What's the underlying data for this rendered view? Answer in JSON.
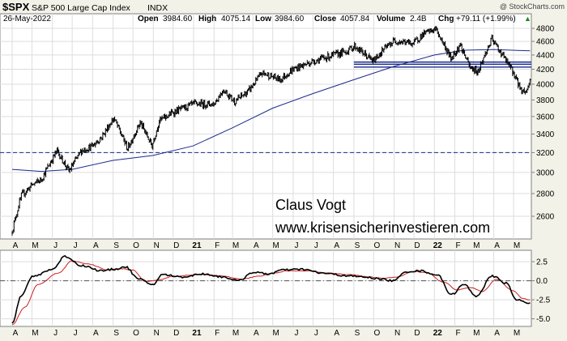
{
  "header": {
    "symbol": "$SPX",
    "name": "S&P 500 Large Cap Index",
    "exchange": "INDX",
    "date": "26-May-2022",
    "watermark": "@ StockCharts.com",
    "open_label": "Open",
    "open_value": "3984.60",
    "high_label": "High",
    "high_value": "4075.14",
    "low_label": "Low",
    "low_value": "3984.60",
    "close_label": "Close",
    "close_value": "4057.84",
    "volume_label": "Volume",
    "volume_value": "2.4B",
    "chg_label": "Chg",
    "chg_value": "+79.11 (+1.99%)"
  },
  "annotation": {
    "line1": "Claus Vogt",
    "line2": "www.krisensicherinvestieren.com"
  },
  "colors": {
    "background": "#f2f2e8",
    "panel": "#ffffff",
    "price": "#000000",
    "moving_average": "#1a2a8c",
    "signal": "#cc1f1f",
    "grid": "#d9d9d9"
  },
  "chart_data": [
    {
      "type": "line",
      "panel": "price",
      "ylim": [
        2400,
        4900
      ],
      "y_scale": "log",
      "y_ticks": [
        2600,
        2800,
        3000,
        3200,
        3400,
        3600,
        3800,
        4000,
        4200,
        4400,
        4600,
        4800
      ],
      "x_ticks": [
        "A",
        "M",
        "J",
        "J",
        "A",
        "S",
        "O",
        "N",
        "D",
        "21",
        "F",
        "M",
        "A",
        "M",
        "J",
        "J",
        "A",
        "S",
        "O",
        "N",
        "D",
        "22",
        "F",
        "M",
        "A",
        "M"
      ],
      "series": [
        {
          "style": "bars",
          "x": [
            "2020-04-01",
            "2020-04-15",
            "2020-05-01",
            "2020-05-15",
            "2020-06-08",
            "2020-06-26",
            "2020-07-15",
            "2020-08-01",
            "2020-08-15",
            "2020-09-02",
            "2020-09-23",
            "2020-10-12",
            "2020-10-30",
            "2020-11-10",
            "2020-12-01",
            "2021-01-01",
            "2021-02-01",
            "2021-02-15",
            "2021-03-04",
            "2021-03-25",
            "2021-04-15",
            "2021-05-12",
            "2021-06-01",
            "2021-06-28",
            "2021-07-15",
            "2021-08-01",
            "2021-08-20",
            "2021-09-02",
            "2021-09-30",
            "2021-10-15",
            "2021-11-01",
            "2021-11-30",
            "2021-12-15",
            "2022-01-03",
            "2022-01-26",
            "2022-02-09",
            "2022-02-24",
            "2022-03-08",
            "2022-03-29",
            "2022-04-15",
            "2022-05-01",
            "2022-05-12",
            "2022-05-20",
            "2022-05-26"
          ],
          "values": [
            2480,
            2780,
            2880,
            2930,
            3220,
            3010,
            3220,
            3270,
            3370,
            3580,
            3240,
            3530,
            3270,
            3550,
            3650,
            3750,
            3750,
            3930,
            3780,
            3910,
            4150,
            4060,
            4200,
            4300,
            4350,
            4400,
            4450,
            4530,
            4310,
            4470,
            4610,
            4570,
            4710,
            4790,
            4350,
            4550,
            4220,
            4170,
            4630,
            4390,
            4150,
            3930,
            3900,
            4057.84
          ]
        },
        {
          "name": "",
          "style": "line",
          "x": [
            "2020-04-01",
            "2020-05-15",
            "2020-07-01",
            "2020-09-01",
            "2020-10-31",
            "2020-12-31",
            "2021-03-01",
            "2021-05-01",
            "2021-07-01",
            "2021-09-01",
            "2021-11-01",
            "2022-01-01",
            "2022-02-15",
            "2022-04-01",
            "2022-05-26"
          ],
          "values": [
            3030,
            3010,
            3030,
            3120,
            3170,
            3270,
            3470,
            3700,
            3880,
            4060,
            4240,
            4400,
            4470,
            4480,
            4460
          ]
        }
      ],
      "reference_lines": [
        {
          "style": "dashed",
          "value": 3200
        },
        {
          "style": "solid",
          "from": "2021-09-01",
          "value": 4300
        },
        {
          "style": "solid",
          "from": "2021-09-01",
          "value": 4270
        },
        {
          "style": "solid",
          "from": "2021-09-01",
          "value": 4230
        }
      ]
    },
    {
      "type": "line",
      "panel": "oscillator",
      "ylim": [
        -6,
        4
      ],
      "y_ticks": [
        2.5,
        0.0,
        -2.5,
        -5.0
      ],
      "y_tick_labels": [
        "2.5",
        "0.0",
        "-2.5",
        "-5.0"
      ],
      "x_ticks": [
        "A",
        "M",
        "J",
        "J",
        "A",
        "S",
        "O",
        "N",
        "D",
        "21",
        "F",
        "M",
        "A",
        "M",
        "J",
        "J",
        "A",
        "S",
        "O",
        "N",
        "D",
        "22",
        "F",
        "M",
        "A",
        "M"
      ],
      "series": [
        {
          "x": [
            "2020-04-01",
            "2020-04-15",
            "2020-05-01",
            "2020-06-01",
            "2020-06-20",
            "2020-07-15",
            "2020-08-15",
            "2020-09-01",
            "2020-09-20",
            "2020-10-10",
            "2020-10-31",
            "2020-11-15",
            "2020-12-15",
            "2021-01-15",
            "2021-02-15",
            "2021-03-10",
            "2021-04-01",
            "2021-04-25",
            "2021-05-15",
            "2021-06-15",
            "2021-07-15",
            "2021-08-15",
            "2021-09-15",
            "2021-10-05",
            "2021-10-31",
            "2021-11-20",
            "2021-12-10",
            "2022-01-05",
            "2022-01-27",
            "2022-02-15",
            "2022-03-05",
            "2022-03-30",
            "2022-04-20",
            "2022-05-05",
            "2022-05-26"
          ],
          "values": [
            -5.5,
            -2.0,
            0.5,
            1.5,
            3.2,
            2.0,
            1.3,
            1.5,
            1.8,
            0.2,
            -0.5,
            0.8,
            0.5,
            0.9,
            0.5,
            0.0,
            1.1,
            0.9,
            1.4,
            1.5,
            1.0,
            0.7,
            0.5,
            0.3,
            0.0,
            1.2,
            1.3,
            0.8,
            -1.8,
            -0.5,
            -2.0,
            0.6,
            -0.3,
            -2.5,
            -2.9
          ]
        },
        {
          "x": [
            "2020-04-01",
            "2020-04-20",
            "2020-05-10",
            "2020-06-10",
            "2020-07-01",
            "2020-07-25",
            "2020-08-25",
            "2020-09-10",
            "2020-10-01",
            "2020-10-20",
            "2020-11-10",
            "2020-12-01",
            "2021-01-15",
            "2021-02-15",
            "2021-03-15",
            "2021-04-10",
            "2021-05-01",
            "2021-05-25",
            "2021-06-25",
            "2021-07-25",
            "2021-08-25",
            "2021-09-25",
            "2021-10-15",
            "2021-11-05",
            "2021-11-30",
            "2021-12-20",
            "2022-01-15",
            "2022-02-05",
            "2022-02-25",
            "2022-03-15",
            "2022-04-05",
            "2022-04-30",
            "2022-05-15",
            "2022-05-26"
          ],
          "values": [
            -5.8,
            -3.5,
            -0.5,
            1.0,
            2.6,
            2.2,
            1.4,
            1.6,
            1.4,
            -0.1,
            0.1,
            0.6,
            0.8,
            0.6,
            0.2,
            0.6,
            1.0,
            1.3,
            1.3,
            1.0,
            0.8,
            0.5,
            0.3,
            0.5,
            1.2,
            1.1,
            -0.2,
            -1.2,
            -0.9,
            -1.4,
            0.2,
            -1.3,
            -2.3,
            -2.5
          ]
        }
      ],
      "reference_lines": [
        {
          "style": "dash-dot",
          "value": 0
        }
      ]
    }
  ]
}
